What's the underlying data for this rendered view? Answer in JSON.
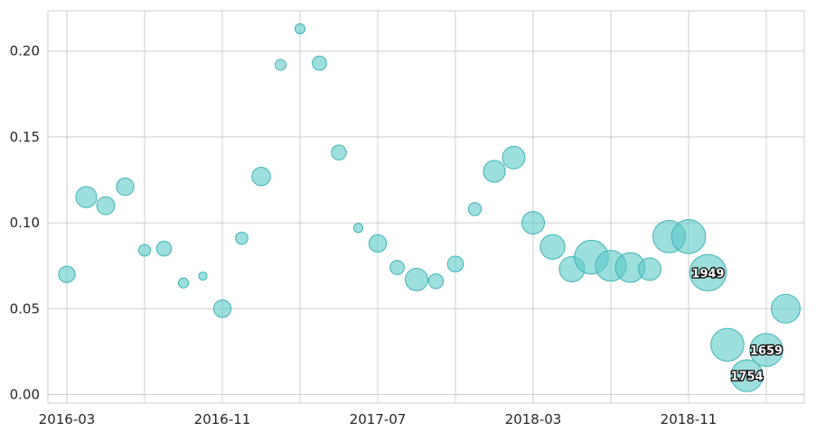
{
  "chart_data": {
    "type": "scatter",
    "title": "",
    "xlabel": "",
    "ylabel": "",
    "grid": true,
    "marker_color": "#5cc8c8",
    "marker_edge_color": "#3fb3b3",
    "x_ticks": [
      "2016-03",
      "2016-11",
      "2017-07",
      "2018-03",
      "2018-11"
    ],
    "x_range": [
      "2016-03",
      "2019-02"
    ],
    "y_ticks": [
      "0.00",
      "0.05",
      "0.10",
      "0.15",
      "0.20"
    ],
    "ylim": [
      -0.004,
      0.223
    ],
    "points": [
      {
        "x": "2016-03",
        "y": 0.07,
        "size": 160
      },
      {
        "x": "2016-04",
        "y": 0.115,
        "size": 260
      },
      {
        "x": "2016-05",
        "y": 0.11,
        "size": 190
      },
      {
        "x": "2016-06",
        "y": 0.121,
        "size": 180
      },
      {
        "x": "2016-07",
        "y": 0.084,
        "size": 80
      },
      {
        "x": "2016-08",
        "y": 0.085,
        "size": 130
      },
      {
        "x": "2016-09",
        "y": 0.065,
        "size": 60
      },
      {
        "x": "2016-10",
        "y": 0.069,
        "size": 40
      },
      {
        "x": "2016-11",
        "y": 0.05,
        "size": 180
      },
      {
        "x": "2016-12",
        "y": 0.091,
        "size": 90
      },
      {
        "x": "2017-01",
        "y": 0.127,
        "size": 200
      },
      {
        "x": "2017-02",
        "y": 0.192,
        "size": 70
      },
      {
        "x": "2017-03",
        "y": 0.213,
        "size": 60
      },
      {
        "x": "2017-04",
        "y": 0.193,
        "size": 120
      },
      {
        "x": "2017-05",
        "y": 0.141,
        "size": 130
      },
      {
        "x": "2017-06",
        "y": 0.097,
        "size": 50
      },
      {
        "x": "2017-07",
        "y": 0.088,
        "size": 180
      },
      {
        "x": "2017-08",
        "y": 0.074,
        "size": 120
      },
      {
        "x": "2017-09",
        "y": 0.067,
        "size": 300
      },
      {
        "x": "2017-10",
        "y": 0.066,
        "size": 130
      },
      {
        "x": "2017-11",
        "y": 0.076,
        "size": 150
      },
      {
        "x": "2017-12",
        "y": 0.108,
        "size": 100
      },
      {
        "x": "2018-01",
        "y": 0.13,
        "size": 280
      },
      {
        "x": "2018-02",
        "y": 0.138,
        "size": 300
      },
      {
        "x": "2018-03",
        "y": 0.1,
        "size": 300
      },
      {
        "x": "2018-04",
        "y": 0.086,
        "size": 360
      },
      {
        "x": "2018-05",
        "y": 0.073,
        "size": 380
      },
      {
        "x": "2018-06",
        "y": 0.08,
        "size": 680
      },
      {
        "x": "2018-07",
        "y": 0.075,
        "size": 560
      },
      {
        "x": "2018-08",
        "y": 0.074,
        "size": 520
      },
      {
        "x": "2018-09",
        "y": 0.073,
        "size": 300
      },
      {
        "x": "2018-10",
        "y": 0.092,
        "size": 620
      },
      {
        "x": "2018-11",
        "y": 0.092,
        "size": 680
      },
      {
        "x": "2018-12",
        "y": 0.071,
        "size": 790,
        "label": "1949"
      },
      {
        "x": "2019-01",
        "y": 0.029,
        "size": 640
      },
      {
        "x": "2019-02",
        "y": 0.011,
        "size": 600,
        "label": "1754"
      },
      {
        "x": "2019-03",
        "y": 0.026,
        "size": 640,
        "label": "1659"
      },
      {
        "x": "2019-04",
        "y": 0.05,
        "size": 490
      }
    ]
  }
}
